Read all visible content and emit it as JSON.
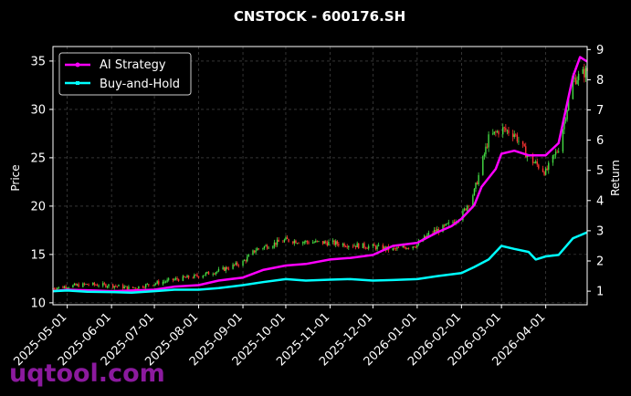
{
  "colors": {
    "background": "#000000",
    "text": "#ffffff",
    "grid": "#555555",
    "strategy": "#ff00ff",
    "buyhold": "#00ffff",
    "candle_up": "#44dd44",
    "candle_down": "#ff3333",
    "watermark": "#8b1a9e"
  },
  "watermark": "uqtool.com",
  "chart_data": {
    "type": "line",
    "title": "CNSTOCK - 600176.SH",
    "ylabel": "Price",
    "y2label": "Return",
    "ylim": [
      9.8,
      36.5
    ],
    "y2lim": [
      0.55,
      9.1
    ],
    "xlim": [
      "2025-04-21",
      "2026-04-30"
    ],
    "yticks": [
      10,
      15,
      20,
      25,
      30,
      35
    ],
    "y2ticks": [
      1,
      2,
      3,
      4,
      5,
      6,
      7,
      8,
      9
    ],
    "xticks": [
      "2025-05-01",
      "2025-06-01",
      "2025-07-01",
      "2025-08-01",
      "2025-09-01",
      "2025-10-01",
      "2025-11-01",
      "2025-12-01",
      "2026-01-01",
      "2026-02-01",
      "2026-03-01",
      "2026-04-01"
    ],
    "grid": true,
    "legend_position": "top-left",
    "price_series": {
      "name": "Price",
      "dates": [
        "2025-04-21",
        "2025-05-01",
        "2025-05-15",
        "2025-06-01",
        "2025-06-15",
        "2025-07-01",
        "2025-07-15",
        "2025-08-01",
        "2025-08-15",
        "2025-09-01",
        "2025-09-10",
        "2025-09-20",
        "2025-10-01",
        "2025-10-15",
        "2025-11-01",
        "2025-11-15",
        "2025-12-01",
        "2025-12-15",
        "2026-01-01",
        "2026-01-10",
        "2026-01-20",
        "2026-02-01",
        "2026-02-10",
        "2026-02-20",
        "2026-03-01",
        "2026-03-10",
        "2026-03-20",
        "2026-04-01",
        "2026-04-10",
        "2026-04-20",
        "2026-04-30"
      ],
      "values": [
        11.5,
        11.7,
        11.9,
        11.8,
        11.5,
        12.0,
        12.4,
        12.8,
        13.3,
        14.2,
        15.5,
        16.0,
        16.5,
        16.3,
        16.2,
        16.0,
        15.8,
        15.5,
        16.0,
        17.2,
        17.8,
        19.0,
        21.5,
        27.0,
        28.0,
        27.5,
        25.0,
        23.5,
        26.0,
        33.0,
        34.0
      ]
    },
    "series": [
      {
        "name": "AI Strategy",
        "dates": [
          "2025-04-21",
          "2025-05-01",
          "2025-05-20",
          "2025-06-01",
          "2025-06-15",
          "2025-07-01",
          "2025-07-15",
          "2025-08-01",
          "2025-08-15",
          "2025-09-01",
          "2025-09-15",
          "2025-10-01",
          "2025-10-15",
          "2025-11-01",
          "2025-11-15",
          "2025-12-01",
          "2025-12-15",
          "2026-01-01",
          "2026-01-15",
          "2026-01-25",
          "2026-02-01",
          "2026-02-10",
          "2026-02-15",
          "2026-02-25",
          "2026-03-01",
          "2026-03-10",
          "2026-03-20",
          "2026-04-01",
          "2026-04-10",
          "2026-04-20",
          "2026-04-25",
          "2026-04-30"
        ],
        "values": [
          1.0,
          1.05,
          1.02,
          1.0,
          1.02,
          1.05,
          1.15,
          1.2,
          1.35,
          1.45,
          1.7,
          1.85,
          1.9,
          2.05,
          2.1,
          2.2,
          2.5,
          2.6,
          2.95,
          3.15,
          3.4,
          3.85,
          4.45,
          5.05,
          5.55,
          5.65,
          5.5,
          5.5,
          5.9,
          8.1,
          8.75,
          8.6
        ]
      },
      {
        "name": "Buy-and-Hold",
        "dates": [
          "2025-04-21",
          "2025-05-01",
          "2025-05-15",
          "2025-06-01",
          "2025-06-15",
          "2025-07-01",
          "2025-07-15",
          "2025-08-01",
          "2025-08-15",
          "2025-09-01",
          "2025-09-15",
          "2025-10-01",
          "2025-10-15",
          "2025-11-01",
          "2025-11-15",
          "2025-12-01",
          "2025-12-15",
          "2026-01-01",
          "2026-01-15",
          "2026-02-01",
          "2026-02-10",
          "2026-02-20",
          "2026-03-01",
          "2026-03-10",
          "2026-03-20",
          "2026-03-25",
          "2026-04-01",
          "2026-04-10",
          "2026-04-20",
          "2026-04-30"
        ],
        "values": [
          1.0,
          1.02,
          0.98,
          0.97,
          0.95,
          1.0,
          1.05,
          1.05,
          1.1,
          1.2,
          1.3,
          1.4,
          1.35,
          1.38,
          1.4,
          1.35,
          1.37,
          1.4,
          1.5,
          1.6,
          1.8,
          2.05,
          2.5,
          2.4,
          2.3,
          2.05,
          2.15,
          2.2,
          2.75,
          2.95
        ]
      }
    ]
  }
}
